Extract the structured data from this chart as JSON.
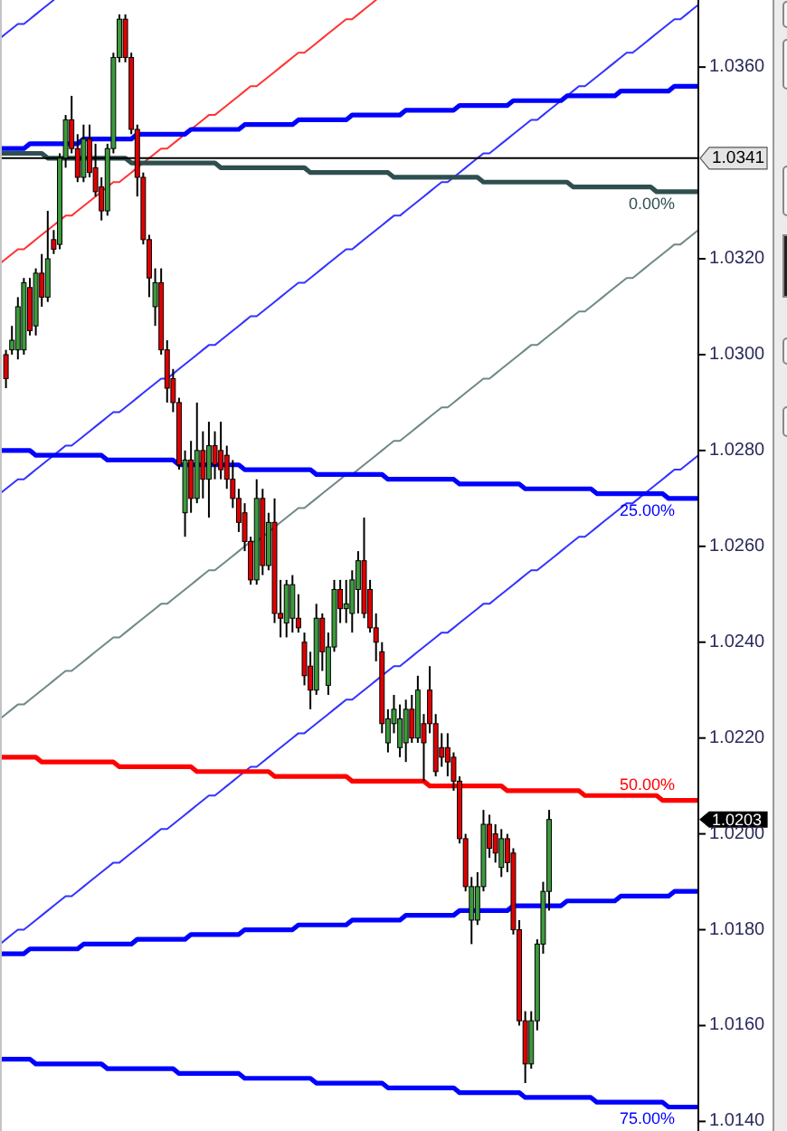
{
  "chart_data": {
    "type": "candlestick",
    "categories": [
      null,
      null,
      null,
      null,
      null,
      null,
      null,
      null,
      null,
      null,
      null,
      null,
      null,
      null,
      null,
      null,
      null,
      null,
      null,
      null,
      null,
      null,
      null,
      null,
      null,
      null,
      null,
      null,
      null,
      null,
      null,
      null,
      null,
      null,
      null,
      null,
      null,
      null,
      null,
      null,
      null,
      null,
      null,
      null,
      null,
      null,
      null,
      null,
      null,
      null,
      null,
      null,
      null,
      null,
      null,
      null,
      null,
      null,
      null,
      null,
      null,
      null,
      null,
      null,
      null,
      null,
      null,
      null,
      null,
      null,
      null,
      null,
      null,
      null,
      null,
      null,
      null,
      null,
      null,
      null,
      null,
      null,
      null,
      null,
      null,
      null,
      null,
      null,
      null,
      null,
      null,
      null,
      null,
      null,
      null,
      null,
      null,
      null,
      null,
      null,
      null,
      null,
      null,
      null,
      null,
      null,
      null,
      null,
      null,
      null,
      null,
      null,
      null,
      null,
      null,
      null,
      null,
      null
    ],
    "ohlc": [
      null,
      [
        1.03,
        1.0301,
        1.0293,
        1.0295
      ],
      [
        1.0301,
        1.0306,
        1.03,
        1.0303
      ],
      [
        1.0301,
        1.0312,
        1.0299,
        1.031
      ],
      [
        1.0301,
        1.0316,
        1.03,
        1.0315
      ],
      [
        1.0314,
        1.0316,
        1.0304,
        1.0305
      ],
      [
        1.0306,
        1.0318,
        1.0304,
        1.0317
      ],
      [
        1.0317,
        1.0321,
        1.031,
        1.0312
      ],
      [
        1.0312,
        1.033,
        1.0311,
        1.032
      ],
      [
        1.0324,
        1.0326,
        1.0321,
        1.0322
      ],
      [
        1.0323,
        1.0342,
        1.0322,
        1.0341
      ],
      [
        1.0341,
        1.035,
        1.0339,
        1.0349
      ],
      [
        1.0349,
        1.0354,
        1.0342,
        1.0343
      ],
      [
        1.0343,
        1.0346,
        1.0336,
        1.0337
      ],
      [
        1.0337,
        1.0348,
        1.0336,
        1.0345
      ],
      [
        1.0345,
        1.0348,
        1.0337,
        1.0338
      ],
      [
        1.0339,
        1.0344,
        1.0333,
        1.0334
      ],
      [
        1.0335,
        1.0337,
        1.0328,
        1.033
      ],
      [
        1.033,
        1.0344,
        1.0329,
        1.0343
      ],
      [
        1.0343,
        1.0363,
        1.0342,
        1.0362
      ],
      [
        1.0362,
        1.0371,
        1.0361,
        1.037
      ],
      [
        1.037,
        1.0371,
        1.0361,
        1.0362
      ],
      [
        1.0362,
        1.0363,
        1.0346,
        1.0347
      ],
      [
        1.0347,
        1.0348,
        1.0333,
        1.0337
      ],
      [
        1.0337,
        1.0338,
        1.0323,
        1.0324
      ],
      [
        1.0324,
        1.0325,
        1.0312,
        1.0316
      ],
      [
        1.031,
        1.0318,
        1.0306,
        1.0315
      ],
      [
        1.0315,
        1.0318,
        1.03,
        1.0301
      ],
      [
        1.0301,
        1.0303,
        1.029,
        1.0293
      ],
      [
        1.0295,
        1.0297,
        1.0288,
        1.029
      ],
      [
        1.029,
        1.0291,
        1.0276,
        1.0277
      ],
      [
        1.0267,
        1.028,
        1.0262,
        1.0278
      ],
      [
        1.0278,
        1.0282,
        1.0267,
        1.027
      ],
      [
        1.027,
        1.029,
        1.0269,
        1.028
      ],
      [
        1.028,
        1.0284,
        1.027,
        1.0274
      ],
      [
        1.0274,
        1.0286,
        1.0266,
        1.0281
      ],
      [
        1.0281,
        1.0284,
        1.0274,
        1.0277
      ],
      [
        1.028,
        1.0286,
        1.0274,
        1.0276
      ],
      [
        1.0279,
        1.0281,
        1.0272,
        1.0274
      ],
      [
        1.0274,
        1.0278,
        1.0268,
        1.027
      ],
      [
        1.027,
        1.0272,
        1.0263,
        1.0265
      ],
      [
        1.0267,
        1.0269,
        1.0259,
        1.0261
      ],
      [
        1.0261,
        1.0262,
        1.0252,
        1.0253
      ],
      [
        1.0253,
        1.0274,
        1.0252,
        1.027
      ],
      [
        1.027,
        1.0272,
        1.0254,
        1.0256
      ],
      [
        1.0256,
        1.0267,
        1.0255,
        1.0265
      ],
      [
        1.0265,
        1.027,
        1.0244,
        1.0246
      ],
      [
        1.0246,
        1.0253,
        1.0241,
        1.0245
      ],
      [
        1.0244,
        1.0253,
        1.0241,
        1.0252
      ],
      [
        1.0245,
        1.0254,
        1.0242,
        1.0252
      ],
      [
        1.0245,
        1.025,
        1.0242,
        1.0243
      ],
      [
        1.024,
        1.0242,
        1.0231,
        1.0233
      ],
      [
        1.0235,
        1.0238,
        1.0226,
        1.023
      ],
      [
        1.023,
        1.0248,
        1.0229,
        1.0245
      ],
      [
        1.0245,
        1.0246,
        1.0234,
        1.0238
      ],
      [
        1.0231,
        1.0242,
        1.0229,
        1.0239
      ],
      [
        1.0239,
        1.0253,
        1.0238,
        1.0251
      ],
      [
        1.0251,
        1.0253,
        1.0244,
        1.0247
      ],
      [
        1.0247,
        1.0253,
        1.0244,
        1.0248
      ],
      [
        1.0246,
        1.0255,
        1.0242,
        1.0253
      ],
      [
        1.0251,
        1.0259,
        1.0246,
        1.0257
      ],
      [
        1.0257,
        1.0266,
        1.0245,
        1.0246
      ],
      [
        1.0251,
        1.0253,
        1.0242,
        1.0243
      ],
      [
        1.0243,
        1.0246,
        1.0236,
        1.024
      ],
      [
        1.0238,
        1.024,
        1.0221,
        1.0223
      ],
      [
        1.0219,
        1.0226,
        1.0217,
        1.0224
      ],
      [
        1.0223,
        1.0229,
        1.0221,
        1.0226
      ],
      [
        1.0218,
        1.0227,
        1.0216,
        1.0224
      ],
      [
        1.0219,
        1.0228,
        1.0215,
        1.0226
      ],
      [
        1.0226,
        1.0229,
        1.0219,
        1.022
      ],
      [
        1.022,
        1.0233,
        1.0219,
        1.023
      ],
      [
        1.0223,
        1.0225,
        1.0211,
        1.0219
      ],
      [
        1.023,
        1.0235,
        1.0221,
        1.0223
      ],
      [
        1.0223,
        1.0225,
        1.0212,
        1.0213
      ],
      [
        1.0218,
        1.0221,
        1.0214,
        1.0216
      ],
      [
        1.0218,
        1.0221,
        1.0212,
        1.0215
      ],
      [
        1.0216,
        1.0217,
        1.0209,
        1.0211
      ],
      [
        1.0211,
        1.0212,
        1.0198,
        1.0199
      ],
      [
        1.0199,
        1.02,
        1.0188,
        1.0189
      ],
      [
        1.0182,
        1.0191,
        1.0177,
        1.0189
      ],
      [
        1.0182,
        1.0192,
        1.0181,
        1.0189
      ],
      [
        1.0189,
        1.0205,
        1.0188,
        1.0202
      ],
      [
        1.0202,
        1.0204,
        1.0195,
        1.0197
      ],
      [
        1.02,
        1.0202,
        1.0194,
        1.0196
      ],
      [
        1.0193,
        1.0201,
        1.0191,
        1.0199
      ],
      [
        1.0199,
        1.02,
        1.0192,
        1.0194
      ],
      [
        1.0196,
        1.0197,
        1.0179,
        1.018
      ],
      [
        1.018,
        1.0182,
        1.016,
        1.0161
      ],
      [
        1.0161,
        1.0163,
        1.0148,
        1.0152
      ],
      [
        1.0152,
        1.0163,
        1.0151,
        1.0161
      ],
      [
        1.0161,
        1.0178,
        1.0159,
        1.0177
      ],
      [
        1.0177,
        1.019,
        1.0175,
        1.0188
      ],
      [
        1.0188,
        1.0205,
        1.0184,
        1.0203
      ],
      null,
      null,
      null,
      null,
      null,
      null,
      null,
      null,
      null,
      null,
      null,
      null,
      null,
      null,
      null,
      null,
      null,
      null,
      null,
      null,
      null,
      null,
      null,
      null,
      null
    ],
    "series": [
      {
        "type": "line",
        "color": "#3333ff",
        "values": [
          1.0366,
          1.0367,
          1.0368,
          1.0369,
          1.0369,
          1.037,
          1.0371,
          1.0372,
          1.0373,
          1.0374,
          null,
          null,
          null,
          null,
          null,
          null,
          null,
          null,
          null,
          null,
          null,
          null,
          null,
          null,
          null,
          null,
          null,
          null,
          null,
          null,
          null,
          null,
          null,
          null,
          null,
          null,
          null,
          null,
          null,
          null,
          null,
          null,
          null,
          null,
          null,
          null,
          null,
          null,
          null,
          null,
          null,
          null,
          null,
          null,
          null,
          null,
          null,
          null,
          null,
          null,
          null,
          null,
          null,
          null,
          null,
          null,
          null,
          null,
          null,
          null,
          null,
          null,
          null,
          null,
          null,
          null,
          null,
          null,
          null,
          null,
          null,
          null,
          null,
          null,
          null,
          null,
          null,
          null,
          null,
          null,
          null,
          null,
          null,
          null,
          null,
          null,
          null,
          null,
          null,
          null,
          null,
          null,
          null,
          null,
          null,
          null,
          null,
          null,
          null,
          null,
          null,
          null,
          null,
          null,
          null,
          null,
          null,
          null
        ]
      },
      {
        "type": "line",
        "color": "#ff3333",
        "values": [
          1.0319,
          1.032,
          1.0321,
          1.0322,
          1.0322,
          1.0323,
          1.0324,
          1.0325,
          1.0326,
          1.0327,
          1.0328,
          1.0329,
          1.0329,
          1.033,
          1.0331,
          1.0332,
          1.0333,
          1.0334,
          1.0335,
          1.0336,
          1.0336,
          1.0337,
          1.0338,
          1.0339,
          1.034,
          1.0341,
          1.0342,
          1.0343,
          1.0343,
          1.0344,
          1.0345,
          1.0346,
          1.0347,
          1.0348,
          1.0349,
          1.035,
          1.035,
          1.0351,
          1.0352,
          1.0353,
          1.0354,
          1.0355,
          1.0356,
          1.0356,
          1.0357,
          1.0358,
          1.0359,
          1.036,
          1.0361,
          1.0362,
          1.0363,
          1.0363,
          1.0364,
          1.0365,
          1.0366,
          1.0367,
          1.0368,
          1.0369,
          1.037,
          1.037,
          1.0371,
          1.0372,
          1.0373,
          1.0374,
          null,
          null,
          null,
          null,
          null,
          null,
          null,
          null,
          null,
          null,
          null,
          null,
          null,
          null,
          null,
          null,
          null,
          null,
          null,
          null,
          null,
          null,
          null,
          null,
          null,
          null,
          null,
          null,
          null,
          null,
          null,
          null,
          null,
          null,
          null,
          null,
          null,
          null,
          null,
          null,
          null,
          null,
          null,
          null,
          null,
          null,
          null,
          null,
          null,
          null,
          null,
          null,
          null,
          null
        ]
      },
      {
        "type": "line",
        "color": "#3333ff",
        "values": [
          1.0271,
          1.0272,
          1.0273,
          1.0274,
          1.0274,
          1.0275,
          1.0276,
          1.0277,
          1.0278,
          1.0279,
          1.028,
          1.0281,
          1.0281,
          1.0282,
          1.0283,
          1.0284,
          1.0285,
          1.0286,
          1.0287,
          1.0288,
          1.0288,
          1.0289,
          1.029,
          1.0291,
          1.0292,
          1.0293,
          1.0294,
          1.0295,
          1.0295,
          1.0296,
          1.0297,
          1.0298,
          1.0299,
          1.03,
          1.0301,
          1.0302,
          1.0302,
          1.0303,
          1.0304,
          1.0305,
          1.0306,
          1.0307,
          1.0308,
          1.0308,
          1.0309,
          1.031,
          1.0311,
          1.0312,
          1.0313,
          1.0314,
          1.0315,
          1.0315,
          1.0316,
          1.0317,
          1.0318,
          1.0319,
          1.032,
          1.0321,
          1.0322,
          1.0322,
          1.0323,
          1.0324,
          1.0325,
          1.0326,
          1.0327,
          1.0328,
          1.0329,
          1.0329,
          1.033,
          1.0331,
          1.0332,
          1.0333,
          1.0334,
          1.0335,
          1.0336,
          1.0336,
          1.0337,
          1.0338,
          1.0339,
          1.034,
          1.0341,
          1.0342,
          1.0342,
          1.0343,
          1.0344,
          1.0345,
          1.0346,
          1.0347,
          1.0348,
          1.0349,
          1.0349,
          1.035,
          1.0351,
          1.0352,
          1.0353,
          1.0354,
          1.0355,
          1.0356,
          1.0356,
          1.0357,
          1.0358,
          1.0359,
          1.036,
          1.0361,
          1.0362,
          1.0363,
          1.0363,
          1.0364,
          1.0365,
          1.0366,
          1.0367,
          1.0368,
          1.0369,
          1.037,
          1.037,
          1.0371,
          1.0372,
          1.0373
        ]
      },
      {
        "type": "line",
        "color": "#708888",
        "values": [
          1.0224,
          1.0225,
          1.0226,
          1.0227,
          1.0227,
          1.0228,
          1.0229,
          1.023,
          1.0231,
          1.0232,
          1.0233,
          1.0234,
          1.0234,
          1.0235,
          1.0236,
          1.0237,
          1.0238,
          1.0239,
          1.024,
          1.0241,
          1.0241,
          1.0242,
          1.0243,
          1.0244,
          1.0245,
          1.0246,
          1.0247,
          1.0248,
          1.0248,
          1.0249,
          1.025,
          1.0251,
          1.0252,
          1.0253,
          1.0254,
          1.0255,
          1.0255,
          1.0256,
          1.0257,
          1.0258,
          1.0259,
          1.026,
          1.0261,
          1.0261,
          1.0262,
          1.0263,
          1.0264,
          1.0265,
          1.0266,
          1.0267,
          1.0268,
          1.0268,
          1.0269,
          1.027,
          1.0271,
          1.0272,
          1.0273,
          1.0274,
          1.0275,
          1.0275,
          1.0276,
          1.0277,
          1.0278,
          1.0279,
          1.028,
          1.0281,
          1.0282,
          1.0282,
          1.0283,
          1.0284,
          1.0285,
          1.0286,
          1.0287,
          1.0288,
          1.0289,
          1.0289,
          1.029,
          1.0291,
          1.0292,
          1.0293,
          1.0294,
          1.0295,
          1.0295,
          1.0296,
          1.0297,
          1.0298,
          1.0299,
          1.03,
          1.0301,
          1.0302,
          1.0302,
          1.0303,
          1.0304,
          1.0305,
          1.0306,
          1.0307,
          1.0308,
          1.0309,
          1.0309,
          1.031,
          1.0311,
          1.0312,
          1.0313,
          1.0314,
          1.0315,
          1.0316,
          1.0316,
          1.0317,
          1.0318,
          1.0319,
          1.032,
          1.0321,
          1.0322,
          1.0323,
          1.0323,
          1.0324,
          1.0325,
          1.0326
        ]
      },
      {
        "type": "line",
        "color": "#3333ff",
        "values": [
          1.0177,
          1.0178,
          1.0179,
          1.018,
          1.018,
          1.0181,
          1.0182,
          1.0183,
          1.0184,
          1.0185,
          1.0186,
          1.0187,
          1.0187,
          1.0188,
          1.0189,
          1.019,
          1.0191,
          1.0192,
          1.0193,
          1.0194,
          1.0194,
          1.0195,
          1.0196,
          1.0197,
          1.0198,
          1.0199,
          1.02,
          1.0201,
          1.0201,
          1.0202,
          1.0203,
          1.0204,
          1.0205,
          1.0206,
          1.0207,
          1.0208,
          1.0208,
          1.0209,
          1.021,
          1.0211,
          1.0212,
          1.0213,
          1.0214,
          1.0214,
          1.0215,
          1.0216,
          1.0217,
          1.0218,
          1.0219,
          1.022,
          1.0221,
          1.0221,
          1.0222,
          1.0223,
          1.0224,
          1.0225,
          1.0226,
          1.0227,
          1.0228,
          1.0228,
          1.0229,
          1.023,
          1.0231,
          1.0232,
          1.0233,
          1.0234,
          1.0235,
          1.0235,
          1.0236,
          1.0237,
          1.0238,
          1.0239,
          1.024,
          1.0241,
          1.0242,
          1.0242,
          1.0243,
          1.0244,
          1.0245,
          1.0246,
          1.0247,
          1.0248,
          1.0248,
          1.0249,
          1.025,
          1.0251,
          1.0252,
          1.0253,
          1.0254,
          1.0255,
          1.0255,
          1.0256,
          1.0257,
          1.0258,
          1.0259,
          1.026,
          1.0261,
          1.0262,
          1.0262,
          1.0263,
          1.0264,
          1.0265,
          1.0266,
          1.0267,
          1.0268,
          1.0269,
          1.0269,
          1.027,
          1.0271,
          1.0272,
          1.0273,
          1.0274,
          1.0275,
          1.0276,
          1.0276,
          1.0277,
          1.0278,
          1.0279
        ]
      },
      {
        "type": "line",
        "color": "#0000ff",
        "values": [
          1.0343,
          1.0343,
          1.0343,
          1.0343,
          1.0343,
          1.0344,
          1.0344,
          1.0344,
          1.0344,
          1.0344,
          1.0344,
          1.0344,
          1.0344,
          1.0344,
          1.0345,
          1.0345,
          1.0345,
          1.0345,
          1.0345,
          1.0345,
          1.0345,
          1.0345,
          1.0345,
          1.0346,
          1.0346,
          1.0346,
          1.0346,
          1.0346,
          1.0346,
          1.0346,
          1.0346,
          1.0346,
          1.0347,
          1.0347,
          1.0347,
          1.0347,
          1.0347,
          1.0347,
          1.0347,
          1.0347,
          1.0347,
          1.0348,
          1.0348,
          1.0348,
          1.0348,
          1.0348,
          1.0348,
          1.0348,
          1.0348,
          1.0348,
          1.0349,
          1.0349,
          1.0349,
          1.0349,
          1.0349,
          1.0349,
          1.0349,
          1.0349,
          1.0349,
          1.035,
          1.035,
          1.035,
          1.035,
          1.035,
          1.035,
          1.035,
          1.035,
          1.035,
          1.0351,
          1.0351,
          1.0351,
          1.0351,
          1.0351,
          1.0351,
          1.0351,
          1.0351,
          1.0351,
          1.0352,
          1.0352,
          1.0352,
          1.0352,
          1.0352,
          1.0352,
          1.0352,
          1.0352,
          1.0352,
          1.0353,
          1.0353,
          1.0353,
          1.0353,
          1.0353,
          1.0353,
          1.0353,
          1.0353,
          1.0353,
          1.0354,
          1.0354,
          1.0354,
          1.0354,
          1.0354,
          1.0354,
          1.0354,
          1.0354,
          1.0354,
          1.0355,
          1.0355,
          1.0355,
          1.0355,
          1.0355,
          1.0355,
          1.0355,
          1.0355,
          1.0355,
          1.0356,
          1.0356,
          1.0356,
          1.0356,
          1.0356
        ]
      },
      {
        "type": "line",
        "name": "0.00%",
        "color": "#2f4f4f",
        "values": [
          1.0342,
          1.0342,
          1.0342,
          1.0342,
          1.0342,
          1.0342,
          1.0342,
          1.0342,
          1.0341,
          1.0341,
          1.0341,
          1.0341,
          1.0341,
          1.0341,
          1.0341,
          1.0341,
          1.0341,
          1.0341,
          1.0341,
          1.0341,
          1.0341,
          1.0341,
          1.034,
          1.034,
          1.034,
          1.034,
          1.034,
          1.034,
          1.034,
          1.034,
          1.034,
          1.034,
          1.034,
          1.034,
          1.034,
          1.034,
          1.034,
          1.0339,
          1.0339,
          1.0339,
          1.0339,
          1.0339,
          1.0339,
          1.0339,
          1.0339,
          1.0339,
          1.0339,
          1.0339,
          1.0339,
          1.0339,
          1.0339,
          1.0339,
          1.0338,
          1.0338,
          1.0338,
          1.0338,
          1.0338,
          1.0338,
          1.0338,
          1.0338,
          1.0338,
          1.0338,
          1.0338,
          1.0338,
          1.0338,
          1.0338,
          1.0337,
          1.0337,
          1.0337,
          1.0337,
          1.0337,
          1.0337,
          1.0337,
          1.0337,
          1.0337,
          1.0337,
          1.0337,
          1.0337,
          1.0337,
          1.0337,
          1.0337,
          1.0336,
          1.0336,
          1.0336,
          1.0336,
          1.0336,
          1.0336,
          1.0336,
          1.0336,
          1.0336,
          1.0336,
          1.0336,
          1.0336,
          1.0336,
          1.0336,
          1.0336,
          1.0335,
          1.0335,
          1.0335,
          1.0335,
          1.0335,
          1.0335,
          1.0335,
          1.0335,
          1.0335,
          1.0335,
          1.0335,
          1.0335,
          1.0335,
          1.0335,
          1.0334,
          1.0334,
          1.0334,
          1.0334,
          1.0334,
          1.0334,
          1.0334,
          1.0334
        ]
      },
      {
        "type": "line",
        "name": "25.00%",
        "color": "#0000ff",
        "values": [
          1.028,
          1.028,
          1.028,
          1.028,
          1.028,
          1.028,
          1.0279,
          1.0279,
          1.0279,
          1.0279,
          1.0279,
          1.0279,
          1.0279,
          1.0279,
          1.0279,
          1.0279,
          1.0279,
          1.0279,
          1.0278,
          1.0278,
          1.0278,
          1.0278,
          1.0278,
          1.0278,
          1.0278,
          1.0278,
          1.0278,
          1.0278,
          1.0278,
          1.0278,
          1.0277,
          1.0277,
          null,
          null,
          1.0277,
          1.0277,
          1.0277,
          1.0277,
          1.0277,
          1.0277,
          1.0277,
          1.0276,
          1.0276,
          1.0276,
          1.0276,
          1.0276,
          1.0276,
          1.0276,
          1.0276,
          1.0276,
          1.0276,
          1.0276,
          1.0276,
          1.0275,
          1.0275,
          1.0275,
          1.0275,
          1.0275,
          1.0275,
          1.0275,
          1.0275,
          1.0275,
          1.0275,
          1.0275,
          1.0275,
          1.0274,
          1.0274,
          1.0274,
          1.0274,
          1.0274,
          1.0274,
          1.0274,
          1.0274,
          1.0274,
          1.0274,
          1.0274,
          1.0274,
          1.0273,
          1.0273,
          1.0273,
          1.0273,
          1.0273,
          1.0273,
          1.0273,
          1.0273,
          1.0273,
          1.0273,
          1.0273,
          1.0272,
          1.0272,
          1.0272,
          1.0272,
          1.0272,
          1.0272,
          1.0272,
          1.0272,
          1.0272,
          1.0272,
          1.0272,
          1.0272,
          1.0271,
          1.0271,
          1.0271,
          1.0271,
          1.0271,
          1.0271,
          1.0271,
          1.0271,
          1.0271,
          1.0271,
          1.0271,
          1.0271,
          1.027,
          1.027,
          1.027,
          1.027,
          1.027,
          1.027
        ]
      },
      {
        "type": "line",
        "name": "50.00%",
        "color": "#ff0000",
        "values": [
          1.0216,
          1.0216,
          1.0216,
          1.0216,
          1.0216,
          1.0216,
          1.0216,
          1.0215,
          1.0215,
          1.0215,
          1.0215,
          1.0215,
          1.0215,
          1.0215,
          1.0215,
          1.0215,
          1.0215,
          1.0215,
          1.0215,
          1.0215,
          1.0214,
          1.0214,
          1.0214,
          1.0214,
          1.0214,
          1.0214,
          1.0214,
          1.0214,
          1.0214,
          1.0214,
          1.0214,
          1.0214,
          1.0214,
          1.0213,
          1.0213,
          1.0213,
          1.0213,
          1.0213,
          1.0213,
          1.0213,
          1.0213,
          1.0213,
          1.0213,
          1.0213,
          1.0213,
          1.0213,
          1.0212,
          1.0212,
          1.0212,
          1.0212,
          1.0212,
          1.0212,
          1.0212,
          1.0212,
          1.0212,
          1.0212,
          1.0212,
          1.0212,
          1.0212,
          1.0211,
          1.0211,
          1.0211,
          1.0211,
          1.0211,
          1.0211,
          1.0211,
          1.0211,
          1.0211,
          1.0211,
          1.0211,
          1.0211,
          1.0211,
          1.021,
          1.021,
          1.021,
          1.021,
          1.021,
          1.021,
          1.021,
          1.021,
          1.021,
          1.021,
          1.021,
          1.021,
          1.021,
          1.0209,
          1.0209,
          1.0209,
          1.0209,
          1.0209,
          1.0209,
          1.0209,
          1.0209,
          1.0209,
          1.0209,
          1.0209,
          1.0209,
          1.0209,
          1.0208,
          1.0208,
          1.0208,
          1.0208,
          1.0208,
          1.0208,
          1.0208,
          1.0208,
          1.0208,
          1.0208,
          1.0208,
          1.0208,
          1.0208,
          1.0207,
          1.0207,
          1.0207,
          1.0207,
          1.0207,
          1.0207,
          1.0207
        ]
      },
      {
        "type": "line",
        "color": "#0000ff",
        "values": [
          1.0175,
          1.0175,
          1.0175,
          1.0175,
          1.0175,
          1.0176,
          1.0176,
          1.0176,
          1.0176,
          1.0176,
          1.0176,
          1.0176,
          1.0176,
          1.0176,
          1.0177,
          1.0177,
          1.0177,
          1.0177,
          1.0177,
          1.0177,
          1.0177,
          1.0177,
          1.0177,
          1.0178,
          1.0178,
          1.0178,
          1.0178,
          1.0178,
          1.0178,
          1.0178,
          1.0178,
          1.0178,
          1.0179,
          1.0179,
          1.0179,
          1.0179,
          1.0179,
          1.0179,
          1.0179,
          1.0179,
          1.0179,
          1.018,
          1.018,
          1.018,
          1.018,
          1.018,
          1.018,
          1.018,
          1.018,
          1.018,
          1.0181,
          1.0181,
          1.0181,
          1.0181,
          1.0181,
          1.0181,
          1.0181,
          1.0181,
          1.0181,
          1.0182,
          1.0182,
          1.0182,
          1.0182,
          1.0182,
          1.0182,
          1.0182,
          1.0182,
          1.0182,
          1.0183,
          1.0183,
          1.0183,
          1.0183,
          1.0183,
          1.0183,
          1.0183,
          1.0183,
          1.0183,
          1.0184,
          1.0184,
          1.0184,
          1.0184,
          1.0184,
          1.0184,
          1.0184,
          1.0184,
          1.0184,
          1.0185,
          1.0185,
          1.0185,
          1.0185,
          1.0185,
          1.0185,
          1.0185,
          1.0185,
          1.0185,
          1.0186,
          1.0186,
          1.0186,
          1.0186,
          1.0186,
          1.0186,
          1.0186,
          1.0186,
          1.0186,
          1.0187,
          1.0187,
          1.0187,
          1.0187,
          1.0187,
          1.0187,
          1.0187,
          1.0187,
          1.0187,
          1.0188,
          1.0188,
          1.0188,
          1.0188,
          1.0188
        ]
      },
      {
        "type": "line",
        "name": "75.00%",
        "color": "#0000ff",
        "values": [
          1.0153,
          1.0153,
          1.0153,
          1.0153,
          1.0153,
          1.0153,
          1.0152,
          1.0152,
          1.0152,
          1.0152,
          1.0152,
          1.0152,
          1.0152,
          1.0152,
          1.0152,
          1.0152,
          1.0152,
          1.0152,
          1.0151,
          1.0151,
          1.0151,
          1.0151,
          1.0151,
          1.0151,
          1.0151,
          1.0151,
          1.0151,
          1.0151,
          1.0151,
          1.0151,
          1.015,
          1.015,
          1.015,
          1.015,
          1.015,
          1.015,
          1.015,
          1.015,
          1.015,
          1.015,
          1.015,
          1.0149,
          1.0149,
          1.0149,
          1.0149,
          1.0149,
          1.0149,
          1.0149,
          1.0149,
          1.0149,
          1.0149,
          1.0149,
          1.0149,
          1.0148,
          1.0148,
          1.0148,
          1.0148,
          1.0148,
          1.0148,
          1.0148,
          1.0148,
          1.0148,
          1.0148,
          1.0148,
          1.0148,
          1.0147,
          1.0147,
          1.0147,
          1.0147,
          1.0147,
          1.0147,
          1.0147,
          1.0147,
          1.0147,
          1.0147,
          1.0147,
          1.0147,
          1.0146,
          1.0146,
          1.0146,
          1.0146,
          1.0146,
          1.0146,
          1.0146,
          1.0146,
          1.0146,
          1.0146,
          1.0146,
          1.0145,
          1.0145,
          1.0145,
          1.0145,
          1.0145,
          1.0145,
          1.0145,
          1.0145,
          1.0145,
          1.0145,
          1.0145,
          1.0145,
          1.0144,
          1.0144,
          1.0144,
          1.0144,
          1.0144,
          1.0144,
          1.0144,
          1.0144,
          1.0144,
          1.0144,
          1.0144,
          1.0144,
          1.0143,
          1.0143,
          1.0143,
          1.0143,
          1.0143,
          1.0143
        ]
      }
    ],
    "ref_lines": [
      {
        "axis": "y",
        "value": 1.0341,
        "label": "1.0341",
        "color": "#000000"
      }
    ],
    "annotations": [
      "1.0203"
    ],
    "ylim": [
      1.0138,
      1.0374
    ],
    "yticks": [
      {
        "value": 1.014,
        "label": "1.0140"
      },
      {
        "value": 1.016,
        "label": "1.0160"
      },
      {
        "value": 1.018,
        "label": "1.0180"
      },
      {
        "value": 1.02,
        "label": "1.0200"
      },
      {
        "value": 1.022,
        "label": "1.0220"
      },
      {
        "value": 1.024,
        "label": "1.0240"
      },
      {
        "value": 1.026,
        "label": "1.0260"
      },
      {
        "value": 1.028,
        "label": "1.0280"
      },
      {
        "value": 1.03,
        "label": "1.0300"
      },
      {
        "value": 1.032,
        "label": "1.0320"
      },
      {
        "value": 1.036,
        "label": "1.0360"
      }
    ],
    "tick_labels": "y"
  }
}
